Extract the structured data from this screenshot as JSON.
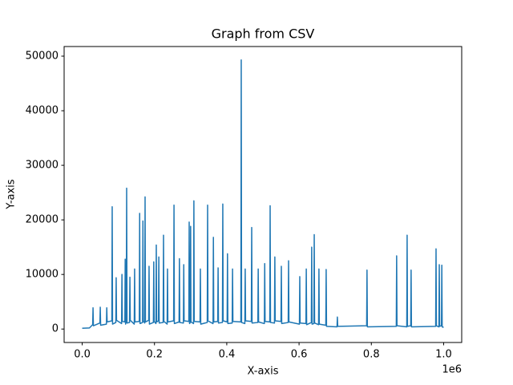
{
  "chart_data": {
    "type": "line",
    "title": "Graph from CSV",
    "x_label": "X-axis",
    "y_label": "Y-axis",
    "x_offset_text": "1e6",
    "color": "#1f77b4",
    "x": [
      0,
      20000,
      29000,
      30000,
      31000,
      49000,
      50000,
      51000,
      67000,
      68000,
      69000,
      82000,
      83000,
      84000,
      93000,
      94000,
      95000,
      109000,
      110000,
      111000,
      118000,
      119000,
      120000,
      122000,
      123000,
      124000,
      131000,
      132000,
      133000,
      144000,
      145000,
      146000,
      158000,
      159000,
      160000,
      167000,
      168000,
      169000,
      173000,
      174000,
      175000,
      184000,
      185000,
      186000,
      197000,
      198000,
      199000,
      204000,
      205000,
      206000,
      211000,
      212000,
      213000,
      224000,
      225000,
      226000,
      235000,
      236000,
      237000,
      253000,
      254000,
      255000,
      268000,
      269000,
      270000,
      280000,
      281000,
      282000,
      295000,
      296000,
      297000,
      299000,
      300000,
      301000,
      308000,
      309000,
      310000,
      326000,
      327000,
      328000,
      346000,
      347000,
      348000,
      362000,
      363000,
      364000,
      375000,
      376000,
      377000,
      388000,
      389000,
      390000,
      401000,
      402000,
      403000,
      415000,
      416000,
      417000,
      439000,
      440000,
      441000,
      450000,
      451000,
      452000,
      468000,
      469000,
      470000,
      486000,
      487000,
      488000,
      504000,
      505000,
      506000,
      519000,
      520000,
      521000,
      532000,
      533000,
      534000,
      550000,
      551000,
      552000,
      570000,
      571000,
      572000,
      601000,
      602000,
      603000,
      619000,
      620000,
      621000,
      634000,
      635000,
      636000,
      641000,
      642000,
      643000,
      654000,
      655000,
      656000,
      674000,
      675000,
      676000,
      705000,
      706000,
      707000,
      787000,
      788000,
      789000,
      869000,
      870000,
      871000,
      898000,
      899000,
      900000,
      909000,
      910000,
      911000,
      978000,
      979000,
      980000,
      987000,
      988000,
      989000,
      994000,
      995000,
      996000,
      1000000
    ],
    "values": [
      150,
      200,
      800,
      3900,
      600,
      1100,
      4000,
      700,
      900,
      3900,
      1300,
      1500,
      22400,
      900,
      1200,
      9400,
      1600,
      1000,
      10000,
      1400,
      1300,
      12800,
      900,
      1500,
      25800,
      1100,
      1200,
      9500,
      1600,
      900,
      11000,
      1300,
      1400,
      21200,
      1000,
      1200,
      19800,
      1500,
      1100,
      24200,
      1300,
      1600,
      11500,
      900,
      1200,
      12300,
      1400,
      1000,
      15400,
      1300,
      1500,
      13200,
      1100,
      1200,
      17200,
      1400,
      900,
      11000,
      1300,
      1500,
      22700,
      1000,
      1300,
      12900,
      1200,
      1100,
      11800,
      1500,
      1400,
      19600,
      1000,
      1200,
      18800,
      1300,
      1000,
      23500,
      1400,
      1300,
      11000,
      900,
      1200,
      22700,
      1500,
      1000,
      16800,
      1300,
      1400,
      11200,
      1100,
      1200,
      22900,
      1500,
      1300,
      13800,
      1000,
      1100,
      11000,
      1400,
      1300,
      49300,
      1200,
      1000,
      11000,
      1500,
      1400,
      18600,
      1100,
      1200,
      11000,
      1300,
      1000,
      12000,
      1400,
      1300,
      22600,
      1200,
      1100,
      13200,
      1500,
      1400,
      11500,
      1000,
      1200,
      12500,
      1300,
      900,
      9600,
      1100,
      1000,
      11000,
      800,
      1200,
      15000,
      900,
      1000,
      17300,
      1100,
      800,
      11000,
      900,
      700,
      10900,
      500,
      400,
      2200,
      500,
      600,
      10800,
      400,
      500,
      13400,
      600,
      400,
      17200,
      500,
      600,
      10800,
      400,
      500,
      14700,
      600,
      400,
      11800,
      500,
      600,
      11700,
      400,
      300
    ],
    "xlim": [
      -50000,
      1050000
    ],
    "xticks": [
      {
        "value": 0,
        "label": "0.0"
      },
      {
        "value": 200000,
        "label": "0.2"
      },
      {
        "value": 400000,
        "label": "0.4"
      },
      {
        "value": 600000,
        "label": "0.6"
      },
      {
        "value": 800000,
        "label": "0.8"
      },
      {
        "value": 1000000,
        "label": "1.0"
      }
    ],
    "ylim": [
      -2465,
      51765
    ],
    "yticks": [
      0,
      10000,
      20000,
      30000,
      40000,
      50000
    ]
  }
}
